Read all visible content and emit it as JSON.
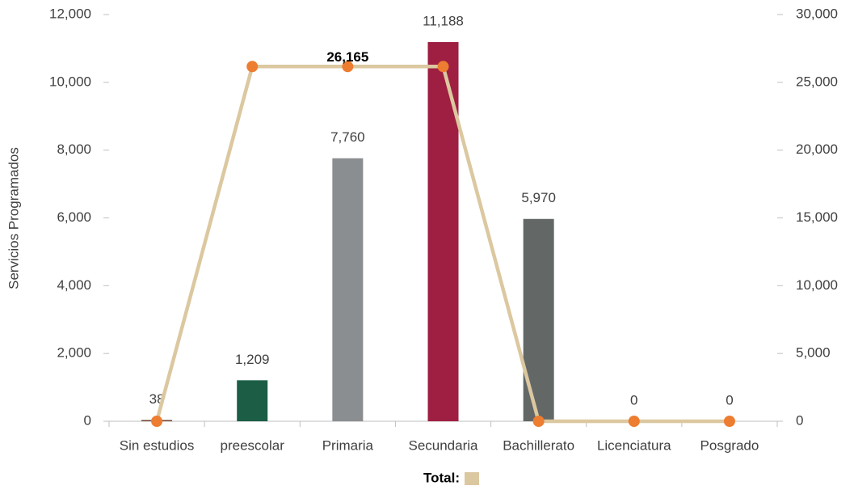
{
  "chart_data": {
    "type": "bar",
    "y_label": "Servicios Programados",
    "categories": [
      "Sin estudios",
      "preescolar",
      "Primaria",
      "Secundaria",
      "Bachillerato",
      "Licenciatura",
      "Posgrado"
    ],
    "series": [
      {
        "type": "bar",
        "colors": [
          "#7a4a3a",
          "#1b5e45",
          "#8b8e90",
          "#9e1f42",
          "#636867",
          "#5a5a5a",
          "#5a5a5a"
        ],
        "values": [
          38,
          1209,
          7760,
          11188,
          5970,
          0,
          0
        ],
        "value_labels": [
          "38",
          "1,209",
          "7,760",
          "11,188",
          "5,970",
          "0",
          "0"
        ]
      },
      {
        "type": "line",
        "name": "Total:",
        "axis": "y2",
        "color": "#dcc8a0",
        "marker_color": "#ed7d31",
        "values": [
          0,
          26165,
          26165,
          26165,
          0,
          0,
          0
        ],
        "value_labels": [
          null,
          null,
          "26,165",
          null,
          null,
          null,
          null
        ]
      }
    ],
    "ylim": [
      0,
      12000
    ],
    "yticks": [
      0,
      {
        "value": 2000,
        "label": "2,000"
      },
      {
        "value": 4000,
        "label": "4,000"
      },
      {
        "value": 6000,
        "label": "6,000"
      },
      {
        "value": 8000,
        "label": "8,000"
      },
      {
        "value": 10000,
        "label": "10,000"
      },
      {
        "value": 12000,
        "label": "12,000"
      }
    ],
    "y2lim": [
      0,
      30000
    ],
    "y2ticks": [
      0,
      {
        "value": 5000,
        "label": "5,000"
      },
      {
        "value": 10000,
        "label": "10,000"
      },
      {
        "value": 15000,
        "label": "15,000"
      },
      {
        "value": 20000,
        "label": "20,000"
      },
      {
        "value": 25000,
        "label": "25,000"
      },
      {
        "value": 30000,
        "label": "30,000"
      }
    ],
    "legend": "bottom"
  }
}
